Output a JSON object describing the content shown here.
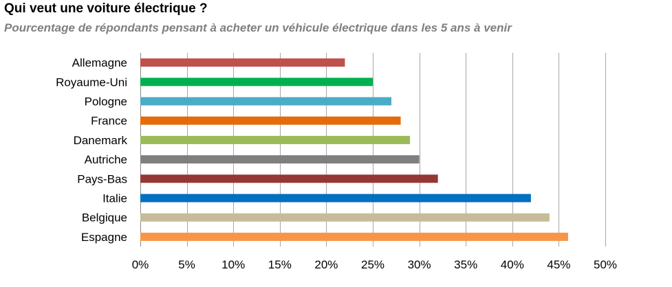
{
  "chart_data": {
    "type": "bar",
    "orientation": "horizontal",
    "title": "Qui veut une voiture électrique ?",
    "subtitle": "Pourcentage de répondants pensant à acheter un véhicule électrique dans les 5 ans à venir",
    "categories": [
      "Allemagne",
      "Royaume-Uni",
      "Pologne",
      "France",
      "Danemark",
      "Autriche",
      "Pays-Bas",
      "Italie",
      "Belgique",
      "Espagne"
    ],
    "values": [
      22,
      25,
      27,
      28,
      29,
      30,
      32,
      42,
      44,
      46
    ],
    "colors": [
      "#c0504d",
      "#00b050",
      "#4bacc6",
      "#e46c0a",
      "#9bbb59",
      "#7f7f7f",
      "#953735",
      "#0070c0",
      "#c4bd97",
      "#f79646"
    ],
    "xlim": [
      0,
      50
    ],
    "xticks": [
      "0%",
      "5%",
      "10%",
      "15%",
      "20%",
      "25%",
      "30%",
      "35%",
      "40%",
      "45%",
      "50%"
    ],
    "xlabel": "",
    "ylabel": "",
    "grid": true,
    "legend": false
  }
}
